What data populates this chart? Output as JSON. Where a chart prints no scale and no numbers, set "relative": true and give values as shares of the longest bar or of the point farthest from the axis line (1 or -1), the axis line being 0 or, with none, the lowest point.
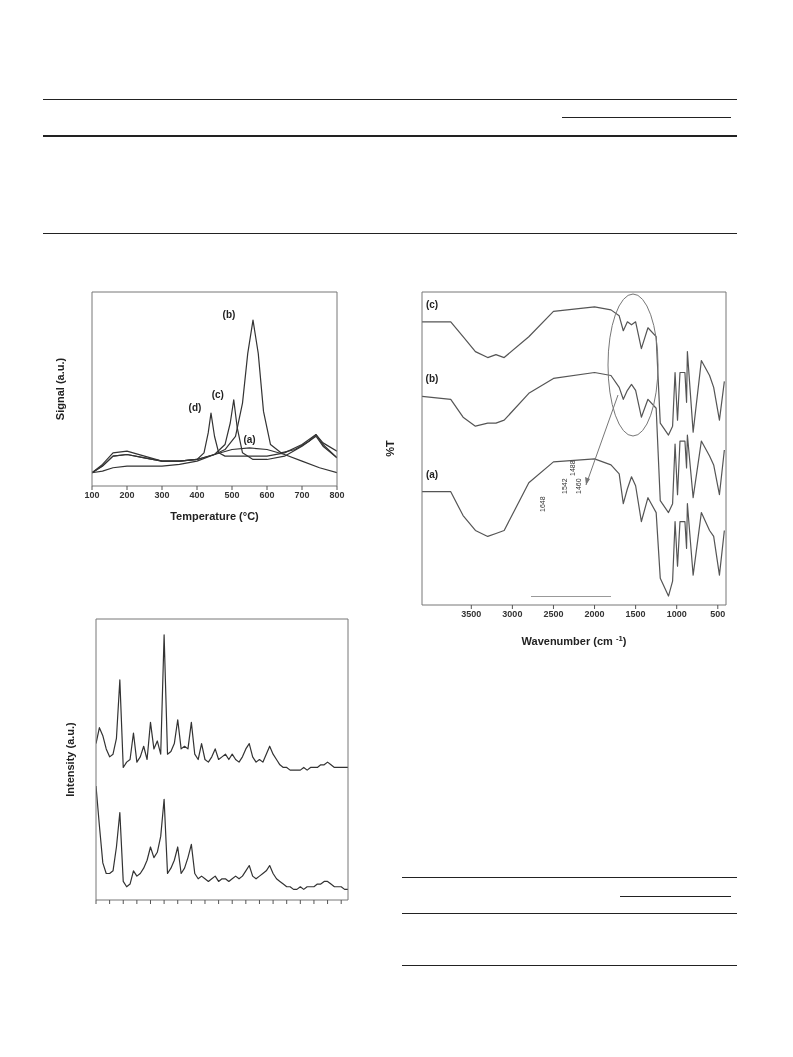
{
  "chart_data": [
    {
      "type": "line",
      "xlabel": "Temperature (°C)",
      "ylabel": "Signal (a.u.)",
      "relative": true,
      "xlim": [
        100,
        800
      ],
      "xticks": [
        100,
        200,
        300,
        400,
        500,
        600,
        700,
        800
      ],
      "tick_labels": "x",
      "marker": "none",
      "line_style": "solid",
      "series": [
        {
          "name": "(a)",
          "color": "#333333",
          "x": [
            100,
            130,
            160,
            200,
            250,
            300,
            350,
            400,
            450,
            500,
            550,
            600,
            650,
            700,
            750,
            800
          ],
          "values": [
            0.08,
            0.09,
            0.11,
            0.12,
            0.12,
            0.12,
            0.13,
            0.15,
            0.19,
            0.22,
            0.23,
            0.22,
            0.19,
            0.15,
            0.11,
            0.08
          ]
        },
        {
          "name": "(b)",
          "color": "#333333",
          "x": [
            100,
            130,
            160,
            200,
            250,
            300,
            350,
            400,
            450,
            480,
            510,
            530,
            545,
            560,
            575,
            590,
            610,
            640,
            680,
            720,
            740,
            760,
            800
          ],
          "values": [
            0.08,
            0.12,
            0.18,
            0.19,
            0.17,
            0.15,
            0.15,
            0.16,
            0.19,
            0.22,
            0.3,
            0.5,
            0.8,
            1,
            0.8,
            0.45,
            0.25,
            0.2,
            0.22,
            0.27,
            0.31,
            0.26,
            0.21
          ]
        },
        {
          "name": "(c)",
          "color": "#333333",
          "x": [
            100,
            130,
            160,
            200,
            250,
            300,
            350,
            400,
            450,
            480,
            495,
            505,
            515,
            530,
            560,
            600,
            650,
            700,
            740,
            760,
            800
          ],
          "values": [
            0.08,
            0.13,
            0.2,
            0.21,
            0.18,
            0.15,
            0.15,
            0.16,
            0.19,
            0.25,
            0.38,
            0.52,
            0.35,
            0.2,
            0.16,
            0.16,
            0.18,
            0.24,
            0.3,
            0.24,
            0.17
          ]
        },
        {
          "name": "(d)",
          "color": "#333333",
          "x": [
            100,
            130,
            160,
            200,
            250,
            300,
            350,
            400,
            420,
            432,
            440,
            450,
            462,
            480,
            520,
            600,
            650,
            700,
            740,
            760,
            800
          ],
          "values": [
            0.08,
            0.12,
            0.18,
            0.19,
            0.17,
            0.15,
            0.15,
            0.16,
            0.2,
            0.32,
            0.44,
            0.3,
            0.2,
            0.18,
            0.18,
            0.18,
            0.2,
            0.25,
            0.31,
            0.25,
            0.17
          ]
        }
      ]
    },
    {
      "type": "line",
      "xlabel": "Wavenumber (cm $^{-1}$)",
      "ylabel": "%T",
      "relative": true,
      "xlim": [
        4100,
        400
      ],
      "xticks": [
        3500,
        3000,
        2500,
        2000,
        1500,
        1000,
        500
      ],
      "tick_labels": "x",
      "marker": "none",
      "line_style": "solid",
      "series": [
        {
          "name": "(a)",
          "color": "#555555",
          "x": [
            4100,
            3750,
            3600,
            3450,
            3300,
            3200,
            3100,
            2800,
            2500,
            2000,
            1800,
            1700,
            1650,
            1600,
            1550,
            1500,
            1430,
            1350,
            1250,
            1200,
            1100,
            1050,
            1020,
            990,
            960,
            900,
            880,
            870,
            800,
            700,
            600,
            550,
            480,
            420
          ],
          "values": [
            0.38,
            0.38,
            0.3,
            0.25,
            0.23,
            0.24,
            0.25,
            0.41,
            0.48,
            0.49,
            0.47,
            0.44,
            0.34,
            0.39,
            0.43,
            0.4,
            0.28,
            0.36,
            0.31,
            0.09,
            0.03,
            0.08,
            0.28,
            0.13,
            0.28,
            0.28,
            0.19,
            0.34,
            0.1,
            0.31,
            0.25,
            0.23,
            0.1,
            0.25
          ]
        },
        {
          "name": "(b)",
          "color": "#555555",
          "x": [
            4100,
            3750,
            3600,
            3450,
            3300,
            3200,
            3100,
            2800,
            2500,
            2000,
            1800,
            1700,
            1650,
            1600,
            1550,
            1500,
            1430,
            1350,
            1250,
            1200,
            1100,
            1050,
            1020,
            990,
            960,
            900,
            880,
            870,
            800,
            700,
            600,
            550,
            480,
            420
          ],
          "values": [
            0.7,
            0.69,
            0.63,
            0.6,
            0.61,
            0.61,
            0.62,
            0.71,
            0.76,
            0.78,
            0.77,
            0.73,
            0.69,
            0.72,
            0.74,
            0.72,
            0.63,
            0.69,
            0.66,
            0.35,
            0.31,
            0.34,
            0.54,
            0.37,
            0.55,
            0.55,
            0.46,
            0.57,
            0.36,
            0.55,
            0.5,
            0.47,
            0.37,
            0.52
          ]
        },
        {
          "name": "(c)",
          "color": "#555555",
          "x": [
            4100,
            3750,
            3600,
            3450,
            3300,
            3200,
            3100,
            2800,
            2500,
            2000,
            1800,
            1700,
            1650,
            1600,
            1550,
            1500,
            1430,
            1350,
            1250,
            1200,
            1100,
            1050,
            1020,
            990,
            960,
            900,
            880,
            870,
            800,
            700,
            600,
            550,
            480,
            420
          ],
          "values": [
            0.95,
            0.95,
            0.9,
            0.85,
            0.83,
            0.84,
            0.83,
            0.9,
            0.985,
            1,
            0.99,
            0.97,
            0.92,
            0.95,
            0.94,
            0.95,
            0.86,
            0.93,
            0.9,
            0.61,
            0.57,
            0.6,
            0.78,
            0.62,
            0.78,
            0.78,
            0.68,
            0.85,
            0.58,
            0.82,
            0.77,
            0.73,
            0.62,
            0.75
          ]
        }
      ],
      "annotations": [
        "1648",
        "1542",
        "1488",
        "1460"
      ]
    },
    {
      "type": "line",
      "ylabel": "Intensity (a.u.)",
      "relative": true,
      "tick_labels": false,
      "marker": "none",
      "line_style": "solid",
      "categories": [
        null,
        null,
        null,
        null,
        null,
        null,
        null,
        null,
        null,
        null,
        null,
        null,
        null,
        null,
        null,
        null,
        null,
        null,
        null,
        null,
        null,
        null,
        null,
        null,
        null,
        null,
        null,
        null,
        null,
        null,
        null,
        null,
        null,
        null,
        null,
        null,
        null,
        null,
        null,
        null,
        null,
        null,
        null,
        null,
        null,
        null,
        null,
        null,
        null,
        null,
        null,
        null,
        null,
        null,
        null,
        null,
        null,
        null,
        null,
        null,
        null,
        null,
        null,
        null,
        null,
        null,
        null,
        null,
        null,
        null,
        null,
        null,
        null,
        null,
        null
      ],
      "series": [
        {
          "color": "#333333",
          "values": [
            0.59,
            0.65,
            0.62,
            0.57,
            0.54,
            0.55,
            0.61,
            0.83,
            0.5,
            0.52,
            0.53,
            0.63,
            0.52,
            0.54,
            0.58,
            0.53,
            0.67,
            0.57,
            0.6,
            0.55,
            1,
            0.55,
            0.56,
            0.59,
            0.68,
            0.57,
            0.58,
            0.57,
            0.67,
            0.55,
            0.53,
            0.59,
            0.53,
            0.52,
            0.54,
            0.57,
            0.53,
            0.54,
            0.55,
            0.53,
            0.55,
            0.53,
            0.52,
            0.54,
            0.57,
            0.59,
            0.54,
            0.52,
            0.53,
            0.52,
            0.55,
            0.58,
            0.55,
            0.53,
            0.51,
            0.5,
            0.5,
            0.49,
            0.49,
            0.49,
            0.49,
            0.5,
            0.49,
            0.5,
            0.5,
            0.5,
            0.51,
            0.51,
            0.52,
            0.51,
            0.5,
            0.5,
            0.5,
            0.5,
            0.5
          ]
        },
        {
          "color": "#333333",
          "values": [
            0.43,
            0.28,
            0.14,
            0.1,
            0.1,
            0.11,
            0.2,
            0.33,
            0.07,
            0.05,
            0.06,
            0.11,
            0.09,
            0.1,
            0.12,
            0.15,
            0.2,
            0.16,
            0.18,
            0.24,
            0.38,
            0.1,
            0.12,
            0.15,
            0.2,
            0.1,
            0.12,
            0.16,
            0.21,
            0.1,
            0.08,
            0.09,
            0.08,
            0.07,
            0.08,
            0.09,
            0.07,
            0.08,
            0.08,
            0.07,
            0.08,
            0.09,
            0.08,
            0.09,
            0.11,
            0.13,
            0.09,
            0.08,
            0.09,
            0.1,
            0.11,
            0.13,
            0.1,
            0.08,
            0.07,
            0.06,
            0.05,
            0.05,
            0.04,
            0.04,
            0.05,
            0.04,
            0.05,
            0.05,
            0.05,
            0.06,
            0.06,
            0.07,
            0.07,
            0.06,
            0.05,
            0.05,
            0.05,
            0.04,
            0.04
          ]
        }
      ]
    }
  ]
}
